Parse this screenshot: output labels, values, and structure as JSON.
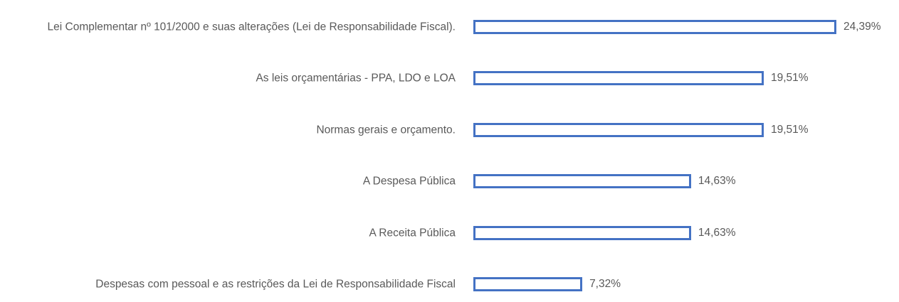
{
  "chart_data": {
    "type": "bar",
    "orientation": "horizontal",
    "color": "#4472c4",
    "categories": [
      "Lei Complementar nº 101/2000 e suas alterações (Lei de Responsabilidade Fiscal).",
      "As leis orçamentárias - PPA, LDO e LOA",
      "Normas gerais e orçamento.",
      "A Despesa Pública",
      "A Receita Pública",
      "Despesas com pessoal e as restrições da Lei de Responsabilidade Fiscal"
    ],
    "values": [
      24.39,
      19.51,
      19.51,
      14.63,
      14.63,
      7.32
    ],
    "value_labels": [
      "24,39%",
      "19,51%",
      "19,51%",
      "14,63%",
      "14,63%",
      "7,32%"
    ]
  }
}
